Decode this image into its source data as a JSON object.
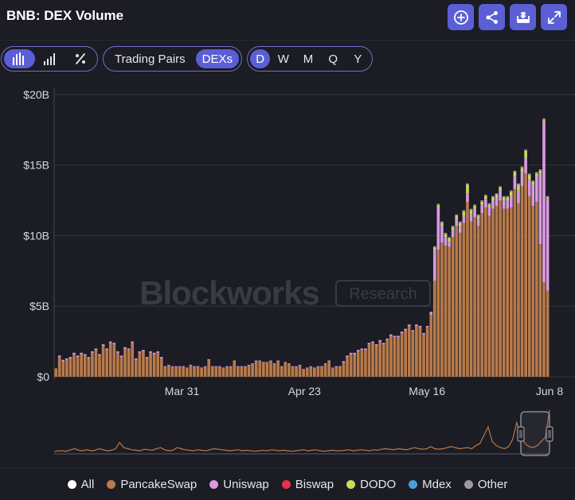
{
  "header": {
    "title": "BNB: DEX Volume",
    "buttons": [
      {
        "name": "add-icon"
      },
      {
        "name": "share-icon"
      },
      {
        "name": "download-icon"
      },
      {
        "name": "expand-icon"
      }
    ]
  },
  "controls": {
    "chart_types": [
      "bar-chart-icon",
      "line-chart-icon",
      "percent-icon"
    ],
    "tabs": [
      {
        "label": "Trading Pairs",
        "active": false
      },
      {
        "label": "DEXs",
        "active": true
      }
    ],
    "periods": [
      {
        "label": "D",
        "active": true
      },
      {
        "label": "W",
        "active": false
      },
      {
        "label": "M",
        "active": false
      },
      {
        "label": "Q",
        "active": false
      },
      {
        "label": "Y",
        "active": false
      }
    ]
  },
  "watermark": {
    "brand": "Blockworks",
    "tag": "Research"
  },
  "colors": {
    "accent": "#5b5fd6",
    "background": "#1c1c24",
    "pancakeswap": "#b87a4b",
    "uniswap": "#d99ae0",
    "biswap": "#e8304f",
    "dodo": "#c5dc5a",
    "mdex": "#4b9fd6",
    "other": "#9a9aa0",
    "all": "#ffffff"
  },
  "chart_data": {
    "type": "bar",
    "stacked": true,
    "title": "BNB: DEX Volume",
    "x_start": "2024-03-07",
    "x_end": "2024-06-08",
    "x_ticks": [
      "Mar 31",
      "Apr 23",
      "May 16",
      "Jun 8"
    ],
    "y_ticks": [
      "$0",
      "$5B",
      "$10B",
      "$15B",
      "$20B"
    ],
    "ylim": [
      0,
      20.5
    ],
    "unit": "B",
    "grid": true,
    "legend_position": "bottom",
    "legend": [
      {
        "label": "All",
        "color": "#ffffff"
      },
      {
        "label": "PancakeSwap",
        "color": "#b87a4b"
      },
      {
        "label": "Uniswap",
        "color": "#d99ae0"
      },
      {
        "label": "Biswap",
        "color": "#e8304f"
      },
      {
        "label": "DODO",
        "color": "#c5dc5a"
      },
      {
        "label": "Mdex",
        "color": "#4b9fd6"
      },
      {
        "label": "Other",
        "color": "#9a9aa0"
      }
    ],
    "series": [
      {
        "name": "PancakeSwap",
        "color": "#b87a4b",
        "values": [
          0.6,
          1.4,
          1.1,
          1.2,
          1.3,
          1.6,
          1.4,
          1.6,
          1.5,
          1.3,
          1.7,
          1.9,
          1.5,
          2.2,
          1.9,
          2.4,
          2.3,
          1.7,
          1.4,
          2.0,
          1.9,
          2.4,
          1.2,
          1.7,
          1.8,
          1.3,
          1.7,
          1.6,
          1.7,
          1.3,
          0.7,
          0.8,
          0.7,
          0.7,
          0.7,
          0.7,
          0.6,
          0.8,
          0.7,
          0.7,
          0.6,
          0.7,
          1.2,
          0.7,
          0.7,
          0.7,
          0.6,
          0.7,
          0.7,
          1.1,
          0.7,
          0.7,
          0.7,
          0.8,
          0.9,
          1.1,
          1.1,
          1.0,
          1.0,
          1.1,
          0.9,
          1.1,
          0.7,
          1.0,
          0.9,
          0.7,
          0.7,
          0.8,
          0.5,
          0.6,
          0.7,
          0.6,
          0.7,
          0.7,
          0.9,
          1.1,
          0.6,
          0.7,
          0.7,
          1.0,
          1.4,
          1.6,
          1.6,
          1.8,
          1.9,
          1.9,
          2.3,
          2.4,
          2.2,
          2.5,
          2.3,
          2.6,
          2.9,
          2.8,
          2.8,
          3.1,
          3.3,
          3.6,
          3.2,
          3.6,
          3.5,
          3.0,
          3.5,
          4.4,
          6.8,
          9.0,
          9.5,
          9.3,
          9.2,
          9.9,
          10.7,
          10.2,
          10.9,
          12.4,
          11.0,
          11.3,
          10.7,
          11.6,
          12.0,
          11.4,
          11.9,
          12.1,
          12.5,
          11.9,
          11.9,
          12.0,
          13.3,
          12.3,
          13.5,
          14.4,
          12.8,
          12.1,
          12.4,
          9.4,
          6.7,
          6.1
        ]
      },
      {
        "name": "Uniswap",
        "color": "#d99ae0",
        "values": [
          0,
          0.1,
          0.1,
          0.1,
          0.1,
          0.1,
          0.1,
          0.1,
          0.1,
          0.1,
          0.1,
          0.1,
          0.1,
          0.1,
          0.1,
          0.1,
          0.1,
          0.1,
          0.1,
          0.1,
          0.1,
          0.1,
          0.1,
          0.1,
          0.1,
          0.1,
          0.1,
          0.1,
          0.1,
          0.1,
          0.05,
          0.05,
          0.05,
          0.05,
          0.05,
          0.05,
          0.05,
          0.05,
          0.05,
          0.05,
          0.05,
          0.05,
          0.05,
          0.05,
          0.05,
          0.05,
          0.05,
          0.05,
          0.05,
          0.05,
          0.05,
          0.05,
          0.05,
          0.05,
          0.05,
          0.05,
          0.05,
          0.05,
          0.05,
          0.05,
          0.05,
          0.05,
          0.05,
          0.05,
          0.05,
          0.05,
          0.05,
          0.05,
          0.05,
          0.05,
          0.05,
          0.05,
          0.05,
          0.05,
          0.05,
          0.05,
          0.05,
          0.05,
          0.05,
          0.1,
          0.1,
          0.1,
          0.1,
          0.1,
          0.1,
          0.1,
          0.1,
          0.1,
          0.1,
          0.1,
          0.1,
          0.1,
          0.1,
          0.1,
          0.1,
          0.1,
          0.1,
          0.1,
          0.1,
          0.1,
          0.1,
          0.1,
          0.1,
          0.2,
          2.2,
          3.0,
          1.2,
          0.6,
          0.4,
          0.5,
          0.5,
          0.5,
          0.5,
          0.6,
          0.5,
          0.6,
          0.5,
          0.6,
          0.6,
          0.6,
          0.6,
          0.6,
          0.7,
          0.6,
          0.6,
          0.8,
          0.9,
          0.9,
          1.0,
          1.1,
          1.2,
          1.5,
          1.8,
          5.0,
          11.4,
          6.5
        ]
      },
      {
        "name": "DODO",
        "color": "#c5dc5a",
        "values": [
          0,
          0,
          0,
          0,
          0,
          0,
          0,
          0,
          0,
          0,
          0,
          0,
          0,
          0,
          0,
          0,
          0,
          0,
          0,
          0,
          0,
          0,
          0,
          0,
          0,
          0,
          0,
          0,
          0,
          0,
          0,
          0,
          0,
          0,
          0,
          0,
          0,
          0,
          0,
          0,
          0,
          0,
          0,
          0,
          0,
          0,
          0,
          0,
          0,
          0,
          0,
          0,
          0,
          0,
          0,
          0,
          0,
          0,
          0,
          0,
          0,
          0,
          0,
          0,
          0,
          0,
          0,
          0,
          0,
          0,
          0,
          0,
          0,
          0,
          0,
          0,
          0,
          0,
          0,
          0,
          0,
          0,
          0,
          0,
          0,
          0,
          0,
          0,
          0,
          0,
          0,
          0,
          0,
          0,
          0,
          0,
          0,
          0,
          0,
          0,
          0,
          0,
          0,
          0,
          0.15,
          0.15,
          0.2,
          0.2,
          0.2,
          0.2,
          0.2,
          0.2,
          0.3,
          0.6,
          0.3,
          0.2,
          0.2,
          0.2,
          0.2,
          0.2,
          0.2,
          0.2,
          0.2,
          0.2,
          0.2,
          0.3,
          0.3,
          0.4,
          0.3,
          0.5,
          0.3,
          0.2,
          0.2,
          0.2,
          0.1,
          0.1
        ]
      },
      {
        "name": "Other",
        "color": "#9a9aa0",
        "values": [
          0,
          0,
          0,
          0,
          0,
          0,
          0,
          0,
          0,
          0,
          0,
          0,
          0,
          0,
          0,
          0,
          0,
          0,
          0,
          0,
          0,
          0,
          0,
          0,
          0,
          0,
          0,
          0,
          0,
          0,
          0,
          0,
          0,
          0,
          0,
          0,
          0,
          0,
          0,
          0,
          0,
          0,
          0,
          0,
          0,
          0,
          0,
          0,
          0,
          0,
          0,
          0,
          0,
          0,
          0,
          0,
          0,
          0,
          0,
          0,
          0,
          0,
          0,
          0,
          0,
          0,
          0,
          0,
          0,
          0,
          0,
          0,
          0,
          0,
          0,
          0,
          0,
          0,
          0,
          0,
          0,
          0,
          0,
          0,
          0,
          0,
          0,
          0,
          0,
          0,
          0,
          0,
          0,
          0,
          0,
          0,
          0,
          0,
          0,
          0,
          0,
          0,
          0,
          0,
          0.1,
          0.1,
          0.1,
          0.1,
          0.1,
          0.1,
          0.1,
          0.1,
          0.1,
          0.1,
          0.1,
          0.1,
          0.1,
          0.1,
          0.1,
          0.1,
          0.1,
          0.1,
          0.1,
          0.1,
          0.1,
          0.1,
          0.1,
          0.1,
          0.1,
          0.1,
          0.1,
          0.1,
          0.1,
          0.1,
          0.1,
          0.1
        ]
      }
    ],
    "navigator": {
      "values": [
        0.2,
        0.3,
        0.3,
        0.25,
        0.4,
        0.5,
        0.35,
        0.3,
        0.4,
        0.3,
        0.35,
        0.5,
        0.4,
        0.3,
        0.35,
        0.5,
        1.1,
        0.6,
        0.5,
        0.4,
        0.35,
        0.3,
        0.45,
        0.4,
        0.35,
        0.5,
        0.6,
        0.4,
        0.3,
        0.35,
        0.6,
        0.5,
        0.4,
        0.35,
        0.3,
        0.4,
        0.35,
        0.3,
        0.4,
        0.5,
        0.45,
        0.4,
        0.35,
        0.3,
        0.35,
        0.4,
        0.3,
        0.35,
        0.3,
        0.25,
        0.3,
        0.35,
        0.3,
        0.4,
        0.35,
        0.3,
        0.35,
        0.3,
        0.25,
        0.3,
        0.35,
        0.4,
        0.3,
        0.35,
        0.4,
        0.3,
        0.25,
        0.3,
        0.35,
        0.3,
        0.3,
        0.35,
        0.4,
        0.3,
        0.35,
        0.4,
        0.35,
        0.3,
        0.4,
        0.35,
        0.45,
        0.5,
        0.45,
        0.4,
        0.5,
        0.45,
        0.4,
        0.5,
        0.6,
        0.5,
        0.45,
        0.5,
        0.7,
        0.5,
        0.45,
        0.5,
        0.6,
        0.7,
        0.6,
        0.5,
        0.55,
        0.6,
        0.5,
        0.8,
        1.0,
        1.8,
        2.6,
        1.2,
        0.8,
        0.6,
        0.5,
        0.7,
        1.4,
        3.0,
        1.8,
        1.0,
        0.7,
        0.6,
        0.8,
        1.2,
        1.6,
        4.2
      ]
    }
  }
}
